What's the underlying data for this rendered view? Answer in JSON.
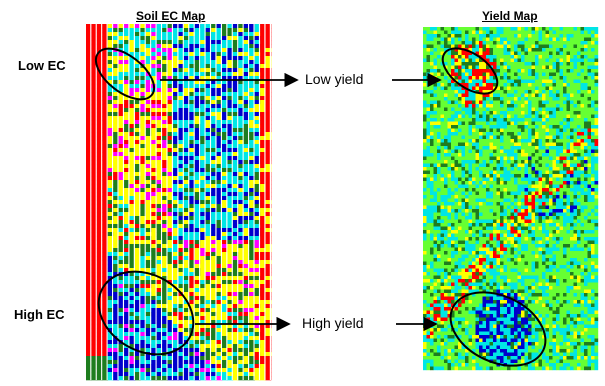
{
  "maps": {
    "soil_ec_title": "Soil EC Map",
    "yield_title": "Yield Map"
  },
  "labels": {
    "low_ec": "Low EC",
    "high_ec": "High EC",
    "low_yield": "Low yield",
    "high_yield": "High yield"
  },
  "colors": {
    "red": "#ff0000",
    "yellow": "#ffff00",
    "green": "#1e7d1e",
    "cyan": "#00e6e6",
    "blue": "#0000cc",
    "magenta": "#ff00ff",
    "lime": "#66ff33",
    "white": "#ffffff"
  }
}
